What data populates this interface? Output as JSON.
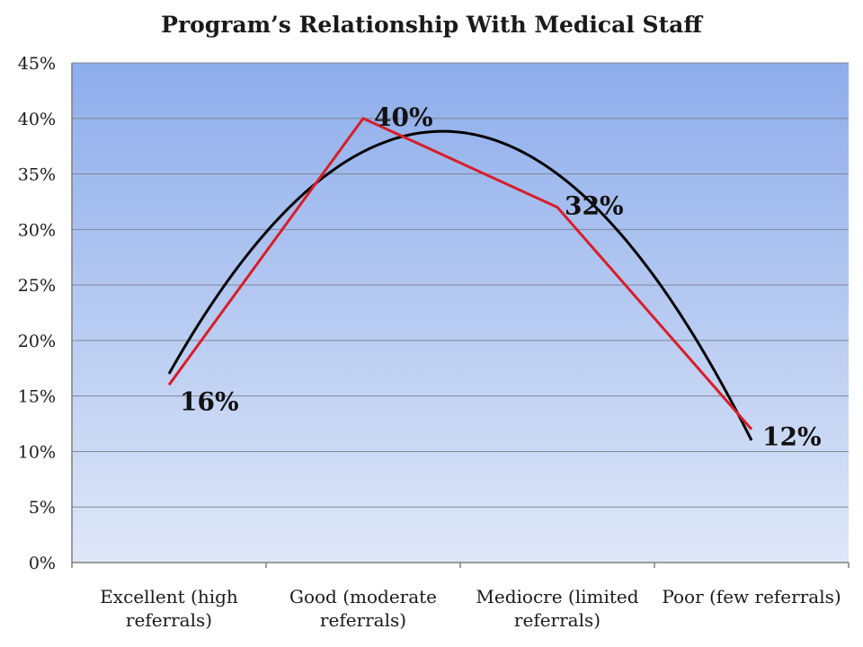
{
  "chart_data": {
    "type": "line",
    "title": "Program’s Relationship With Medical Staff",
    "categories": [
      [
        "Excellent (high",
        "referrals)"
      ],
      [
        "Good (moderate",
        "referrals)"
      ],
      [
        "Mediocre (limited",
        "referrals)"
      ],
      [
        "Poor (few referrals)"
      ]
    ],
    "series": [
      {
        "values": [
          16,
          40,
          32,
          12
        ],
        "color": "#d81e28"
      }
    ],
    "trendline": {
      "type": "polynomial",
      "order": 2,
      "color": "#000000"
    },
    "data_labels": [
      "16%",
      "40%",
      "32%",
      "12%"
    ],
    "y_ticks": [
      "0%",
      "5%",
      "10%",
      "15%",
      "20%",
      "25%",
      "30%",
      "35%",
      "40%",
      "45%"
    ],
    "ylim": [
      0,
      45
    ],
    "ystep": 5,
    "grid": true,
    "legend": "none",
    "plot_background": {
      "top": "#8eadec",
      "bottom": "#dfe7f7"
    }
  }
}
